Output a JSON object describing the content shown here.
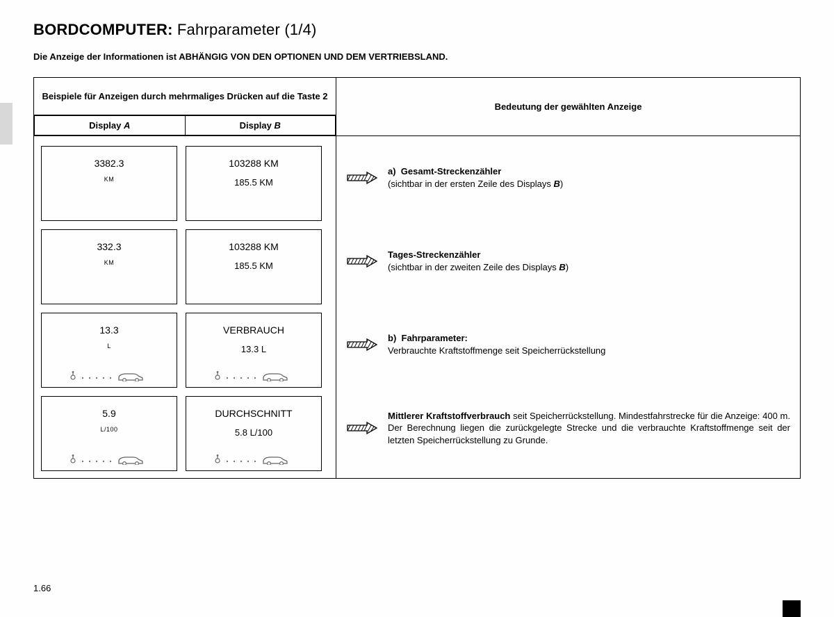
{
  "title_main": "BORDCOMPUTER:",
  "title_sub": "Fahrparameter (1/4)",
  "subtitle": "Die Anzeige der Informationen ist ABHÄNGIG VON DEN OPTIONEN UND DEM VERTRIEBSLAND.",
  "header": {
    "left_top": "Beispiele für Anzeigen durch mehrmaliges Drücken auf die Taste 2",
    "right": "Bedeutung der gewählten Anzeige",
    "display_a": "Display A",
    "display_b": "Display B"
  },
  "rows": [
    {
      "a": {
        "line1": "3382.3",
        "unit": "KM",
        "line2": "",
        "car": false
      },
      "b": {
        "line1": "103288 KM",
        "line2": "185.5 KM",
        "car": false
      },
      "meaning_prefix": "a)",
      "meaning_bold": "Gesamt-Streckenzähler",
      "meaning_rest": "(sichtbar in der ersten Zeile des Displays ",
      "meaning_italic": "B",
      "meaning_end": ")"
    },
    {
      "a": {
        "line1": "332.3",
        "unit": "KM",
        "line2": "",
        "car": false
      },
      "b": {
        "line1": "103288 KM",
        "line2": "185.5 KM",
        "car": false
      },
      "meaning_prefix": "",
      "meaning_bold": "Tages-Streckenzähler",
      "meaning_rest": "(sichtbar in der zweiten Zeile des Displays ",
      "meaning_italic": "B",
      "meaning_end": ")"
    },
    {
      "a": {
        "line1": "13.3",
        "unit": "L",
        "line2": "",
        "car": true
      },
      "b": {
        "line1": "VERBRAUCH",
        "line2": "13.3 L",
        "car": true
      },
      "meaning_prefix": "b)",
      "meaning_bold": "Fahrparameter:",
      "meaning_rest": "Verbrauchte Kraftstoffmenge seit Speicherrückstellung",
      "meaning_italic": "",
      "meaning_end": ""
    },
    {
      "a": {
        "line1": "5.9",
        "unit": "L/100",
        "line2": "",
        "car": true
      },
      "b": {
        "line1": "DURCHSCHNITT",
        "line2": "5.8 L/100",
        "car": true
      },
      "meaning_prefix": "",
      "meaning_bold": "Mittlerer Kraftstoffverbrauch",
      "meaning_rest": " seit Speicherrückstellung. Mindestfahrstrecke für die Anzeige: 400 m. Der Berechnung liegen die zurückgelegte Strecke und die verbrauchte Kraftstoffmenge seit der letzten Speicherrückstellung zu Grunde.",
      "meaning_italic": "",
      "meaning_end": ""
    }
  ],
  "page_number": "1.66",
  "colors": {
    "border": "#000000",
    "bg": "#fefefe",
    "sidetab": "#d8d8d8"
  },
  "arrow_icon": "arrow-right-hatched"
}
